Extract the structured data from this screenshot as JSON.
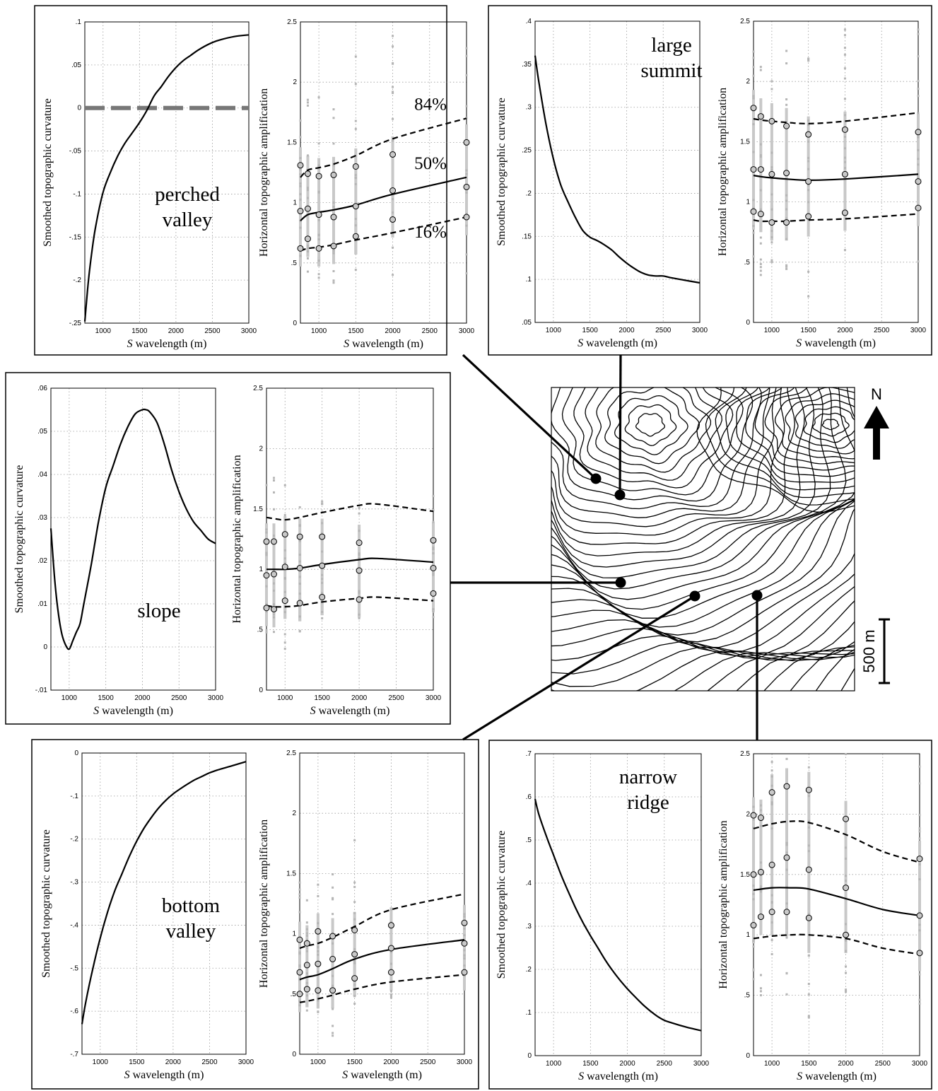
{
  "map": {
    "north_label": "N",
    "scale_label": "500 m"
  },
  "chart_data": [
    {
      "panel": "perched valley",
      "site_label": [
        "perched",
        "valley"
      ],
      "curvature": {
        "type": "line",
        "xlabel_italic": "S",
        "xlabel_rest": " wavelength (m)",
        "ylabel": "Smoothed topographic curvature",
        "xlim": [
          750,
          3000
        ],
        "xticks": [
          1000,
          1500,
          2000,
          2500,
          3000
        ],
        "ylim": [
          -0.25,
          0.1
        ],
        "yticks": [
          -0.25,
          -0.2,
          -0.15,
          -0.1,
          -0.05,
          0,
          0.05,
          0.1
        ],
        "x": [
          750,
          800,
          850,
          900,
          1000,
          1100,
          1200,
          1300,
          1400,
          1500,
          1600,
          1700,
          1800,
          1900,
          2000,
          2100,
          2200,
          2300,
          2400,
          2500,
          2600,
          2800,
          3000
        ],
        "y": [
          -0.248,
          -0.2,
          -0.165,
          -0.137,
          -0.098,
          -0.075,
          -0.056,
          -0.041,
          -0.029,
          -0.017,
          -0.003,
          0.014,
          0.025,
          0.037,
          0.047,
          0.055,
          0.061,
          0.067,
          0.072,
          0.076,
          0.079,
          0.083,
          0.085
        ],
        "zero_line": true
      },
      "amplification": {
        "type": "line",
        "xlabel_italic": "S",
        "xlabel_rest": " wavelength (m)",
        "ylabel": "Horizontal topographic amplification",
        "xlim": [
          750,
          3000
        ],
        "xticks": [
          1000,
          1500,
          2000,
          2500,
          3000
        ],
        "ylim": [
          0,
          2.5
        ],
        "yticks": [
          0,
          0.5,
          1,
          1.5,
          2,
          2.5
        ],
        "x": [
          750,
          850,
          1000,
          1200,
          1500,
          2000,
          3000
        ],
        "p84": [
          1.21,
          1.27,
          1.29,
          1.32,
          1.39,
          1.53,
          1.7
        ],
        "p50": [
          0.85,
          0.9,
          0.92,
          0.94,
          0.98,
          1.07,
          1.21
        ],
        "p16": [
          0.6,
          0.62,
          0.63,
          0.65,
          0.69,
          0.75,
          0.88
        ],
        "markers_hi": [
          1.31,
          1.24,
          1.22,
          1.23,
          1.3,
          1.4,
          1.5
        ],
        "markers_mid": [
          0.93,
          0.95,
          0.9,
          0.88,
          0.97,
          1.1,
          1.13
        ],
        "markers_lo": [
          0.62,
          0.7,
          0.62,
          0.64,
          0.72,
          0.86,
          0.88
        ],
        "spread": [
          [
            0.45,
            1.85
          ],
          [
            0.35,
            1.9
          ],
          [
            0.1,
            1.9
          ],
          [
            0.2,
            1.9
          ],
          [
            0.35,
            2.3
          ],
          [
            0.35,
            2.45
          ],
          [
            0.4,
            2.3
          ]
        ],
        "percentile_labels": [
          "84%",
          "50%",
          "16%"
        ]
      }
    },
    {
      "panel": "large summit",
      "site_label": [
        "large",
        "summit"
      ],
      "curvature": {
        "type": "line",
        "xlabel_italic": "S",
        "xlabel_rest": " wavelength (m)",
        "ylabel": "Smoothed topographic curvature",
        "xlim": [
          750,
          3000
        ],
        "xticks": [
          1000,
          1500,
          2000,
          2500,
          3000
        ],
        "ylim": [
          0.05,
          0.4
        ],
        "yticks": [
          0.05,
          0.1,
          0.15,
          0.2,
          0.25,
          0.3,
          0.35,
          0.4
        ],
        "x": [
          750,
          800,
          900,
          1000,
          1100,
          1200,
          1300,
          1400,
          1500,
          1600,
          1700,
          1800,
          1900,
          2000,
          2100,
          2200,
          2300,
          2400,
          2500,
          2600,
          2800,
          3000
        ],
        "y": [
          0.36,
          0.33,
          0.28,
          0.24,
          0.21,
          0.19,
          0.172,
          0.157,
          0.149,
          0.145,
          0.14,
          0.134,
          0.126,
          0.119,
          0.113,
          0.108,
          0.105,
          0.104,
          0.104,
          0.102,
          0.099,
          0.096
        ]
      },
      "amplification": {
        "type": "line",
        "xlabel_italic": "S",
        "xlabel_rest": " wavelength (m)",
        "ylabel": "Horizontal topographic amplification",
        "xlim": [
          750,
          3000
        ],
        "xticks": [
          1000,
          1500,
          2000,
          2500,
          3000
        ],
        "ylim": [
          0,
          2.5
        ],
        "yticks": [
          0,
          0.5,
          1,
          1.5,
          2,
          2.5
        ],
        "x": [
          750,
          850,
          1000,
          1200,
          1500,
          2000,
          3000
        ],
        "p84": [
          1.69,
          1.68,
          1.67,
          1.66,
          1.65,
          1.67,
          1.74
        ],
        "p50": [
          1.22,
          1.21,
          1.2,
          1.19,
          1.18,
          1.19,
          1.23
        ],
        "p16": [
          0.85,
          0.84,
          0.84,
          0.84,
          0.85,
          0.86,
          0.9
        ],
        "markers_hi": [
          1.78,
          1.71,
          1.67,
          1.63,
          1.56,
          1.6,
          1.58
        ],
        "markers_mid": [
          1.27,
          1.27,
          1.23,
          1.24,
          1.17,
          1.23,
          1.17
        ],
        "markers_lo": [
          0.92,
          0.9,
          0.83,
          0.83,
          0.88,
          0.91,
          0.95
        ],
        "spread": [
          [
            0.5,
            2.45
          ],
          [
            0.35,
            2.45
          ],
          [
            0.5,
            2.4
          ],
          [
            0.3,
            2.4
          ],
          [
            0.15,
            2.4
          ],
          [
            0.45,
            2.45
          ],
          [
            0.4,
            2.45
          ]
        ]
      }
    },
    {
      "panel": "slope",
      "site_label": [
        "slope"
      ],
      "curvature": {
        "type": "line",
        "xlabel_italic": "S",
        "xlabel_rest": " wavelength (m)",
        "ylabel": "Smoothed topographic curvature",
        "xlim": [
          750,
          3000
        ],
        "xticks": [
          1000,
          1500,
          2000,
          2500,
          3000
        ],
        "ylim": [
          -0.01,
          0.06
        ],
        "yticks": [
          -0.01,
          0,
          0.01,
          0.02,
          0.03,
          0.04,
          0.05,
          0.06
        ],
        "x": [
          750,
          800,
          850,
          900,
          950,
          1000,
          1050,
          1100,
          1150,
          1200,
          1300,
          1400,
          1500,
          1600,
          1700,
          1800,
          1900,
          2000,
          2050,
          2100,
          2200,
          2300,
          2400,
          2500,
          2600,
          2700,
          2800,
          2900,
          3000
        ],
        "y": [
          0.0275,
          0.016,
          0.008,
          0.003,
          0.0005,
          -0.0005,
          0.0015,
          0.0035,
          0.0055,
          0.01,
          0.019,
          0.029,
          0.037,
          0.042,
          0.047,
          0.051,
          0.054,
          0.055,
          0.055,
          0.0545,
          0.052,
          0.047,
          0.041,
          0.036,
          0.032,
          0.029,
          0.027,
          0.025,
          0.024
        ]
      },
      "amplification": {
        "type": "line",
        "xlabel_italic": "S",
        "xlabel_rest": " wavelength (m)",
        "ylabel": "Horizontal topographic amplification",
        "xlim": [
          750,
          3000
        ],
        "xticks": [
          1000,
          1500,
          2000,
          2500,
          3000
        ],
        "ylim": [
          0,
          2.5
        ],
        "yticks": [
          0,
          0.5,
          1,
          1.5,
          2,
          2.5
        ],
        "x": [
          750,
          850,
          1000,
          1200,
          1500,
          2000,
          2250,
          3000
        ],
        "p84": [
          1.43,
          1.42,
          1.41,
          1.43,
          1.47,
          1.53,
          1.54,
          1.48
        ],
        "p50": [
          1.0,
          1.0,
          1.0,
          1.01,
          1.04,
          1.08,
          1.09,
          1.06
        ],
        "p16": [
          0.7,
          0.69,
          0.69,
          0.7,
          0.73,
          0.76,
          0.77,
          0.74
        ],
        "markers_x": [
          750,
          850,
          1000,
          1200,
          1500,
          2000,
          3000
        ],
        "markers_hi": [
          1.23,
          1.23,
          1.29,
          1.27,
          1.27,
          1.22,
          1.24
        ],
        "markers_mid": [
          0.95,
          0.96,
          1.02,
          1.01,
          1.03,
          0.99,
          1.01
        ],
        "markers_lo": [
          0.68,
          0.67,
          0.74,
          0.72,
          0.77,
          0.75,
          0.8
        ],
        "spread": [
          [
            0.45,
            1.75
          ],
          [
            0.35,
            1.9
          ],
          [
            0.3,
            1.85
          ],
          [
            0.45,
            1.7
          ],
          [
            0.5,
            1.6
          ],
          [
            0.45,
            1.55
          ],
          [
            0.5,
            1.7
          ]
        ]
      }
    },
    {
      "panel": "bottom valley",
      "site_label": [
        "bottom",
        "valley"
      ],
      "curvature": {
        "type": "line",
        "xlabel_italic": "S",
        "xlabel_rest": " wavelength (m)",
        "ylabel": "Smoothed topographic curvature",
        "xlim": [
          750,
          3000
        ],
        "xticks": [
          1000,
          1500,
          2000,
          2500,
          3000
        ],
        "ylim": [
          -0.7,
          0
        ],
        "yticks": [
          -0.7,
          -0.6,
          -0.5,
          -0.4,
          -0.3,
          -0.2,
          -0.1,
          0
        ],
        "x": [
          750,
          800,
          900,
          1000,
          1100,
          1200,
          1300,
          1400,
          1500,
          1600,
          1700,
          1800,
          1900,
          2000,
          2100,
          2200,
          2300,
          2400,
          2500,
          2600,
          2800,
          3000
        ],
        "y": [
          -0.63,
          -0.58,
          -0.5,
          -0.43,
          -0.37,
          -0.32,
          -0.28,
          -0.24,
          -0.205,
          -0.175,
          -0.15,
          -0.128,
          -0.11,
          -0.095,
          -0.083,
          -0.072,
          -0.062,
          -0.054,
          -0.046,
          -0.04,
          -0.03,
          -0.02
        ]
      },
      "amplification": {
        "type": "line",
        "xlabel_italic": "S",
        "xlabel_rest": " wavelength (m)",
        "ylabel": "Horizontal topographic amplification",
        "xlim": [
          750,
          3000
        ],
        "xticks": [
          1000,
          1500,
          2000,
          2500,
          3000
        ],
        "ylim": [
          0,
          2.5
        ],
        "yticks": [
          0,
          0.5,
          1,
          1.5,
          2,
          2.5
        ],
        "x": [
          750,
          850,
          1000,
          1200,
          1500,
          2000,
          3000
        ],
        "p84": [
          0.88,
          0.9,
          0.92,
          0.97,
          1.06,
          1.2,
          1.33
        ],
        "p50": [
          0.62,
          0.64,
          0.66,
          0.71,
          0.79,
          0.87,
          0.95
        ],
        "p16": [
          0.43,
          0.44,
          0.46,
          0.49,
          0.54,
          0.6,
          0.66
        ],
        "markers_hi": [
          0.95,
          0.92,
          1.02,
          0.98,
          1.03,
          1.07,
          1.09
        ],
        "markers_mid": [
          0.68,
          0.74,
          0.75,
          0.79,
          0.83,
          0.88,
          0.92
        ],
        "markers_lo": [
          0.5,
          0.54,
          0.53,
          0.53,
          0.63,
          0.68,
          0.68
        ],
        "spread": [
          [
            0.35,
            1.45
          ],
          [
            0.3,
            1.5
          ],
          [
            0.35,
            1.45
          ],
          [
            0.15,
            1.5
          ],
          [
            0.4,
            1.85
          ],
          [
            0.4,
            1.25
          ],
          [
            0.45,
            1.25
          ]
        ]
      }
    },
    {
      "panel": "narrow ridge",
      "site_label": [
        "narrow",
        "ridge"
      ],
      "curvature": {
        "type": "line",
        "xlabel_italic": "S",
        "xlabel_rest": " wavelength (m)",
        "ylabel": "Smoothed topographic curvature",
        "xlim": [
          750,
          3000
        ],
        "xticks": [
          1000,
          1500,
          2000,
          2500,
          3000
        ],
        "ylim": [
          0,
          0.7
        ],
        "yticks": [
          0,
          0.1,
          0.2,
          0.3,
          0.4,
          0.5,
          0.6,
          0.7
        ],
        "x": [
          750,
          800,
          900,
          1000,
          1100,
          1200,
          1300,
          1400,
          1500,
          1600,
          1700,
          1800,
          1900,
          2000,
          2100,
          2200,
          2300,
          2400,
          2500,
          2600,
          2800,
          3000
        ],
        "y": [
          0.595,
          0.56,
          0.51,
          0.465,
          0.42,
          0.38,
          0.342,
          0.308,
          0.278,
          0.25,
          0.222,
          0.197,
          0.175,
          0.155,
          0.137,
          0.12,
          0.105,
          0.092,
          0.082,
          0.076,
          0.066,
          0.058
        ]
      },
      "amplification": {
        "type": "line",
        "xlabel_italic": "S",
        "xlabel_rest": " wavelength (m)",
        "ylabel": "Horizontal topographic amplification",
        "xlim": [
          750,
          3000
        ],
        "xticks": [
          1000,
          1500,
          2000,
          2500,
          3000
        ],
        "ylim": [
          0,
          2.5
        ],
        "yticks": [
          0,
          0.5,
          1,
          1.5,
          2,
          2.5
        ],
        "x": [
          750,
          1000,
          1250,
          1500,
          2000,
          2500,
          3000
        ],
        "p84": [
          1.88,
          1.92,
          1.94,
          1.93,
          1.83,
          1.69,
          1.6
        ],
        "p50": [
          1.37,
          1.39,
          1.39,
          1.38,
          1.3,
          1.21,
          1.16
        ],
        "p16": [
          0.97,
          0.99,
          1.0,
          1.0,
          0.97,
          0.89,
          0.84
        ],
        "markers_x": [
          750,
          850,
          1000,
          1200,
          1500,
          2000,
          3000
        ],
        "markers_hi": [
          1.99,
          1.97,
          2.18,
          2.23,
          2.2,
          1.96,
          1.63
        ],
        "markers_mid": [
          1.5,
          1.52,
          1.58,
          1.64,
          1.54,
          1.39,
          1.16
        ],
        "markers_lo": [
          1.08,
          1.15,
          1.19,
          1.19,
          1.14,
          1.0,
          0.85
        ],
        "spread": [
          [
            0.5,
            2.5
          ],
          [
            0.5,
            2.5
          ],
          [
            0.5,
            2.5
          ],
          [
            0.5,
            2.5
          ],
          [
            0.3,
            2.5
          ],
          [
            0.5,
            2.5
          ],
          [
            0.4,
            2.5
          ]
        ]
      }
    }
  ]
}
